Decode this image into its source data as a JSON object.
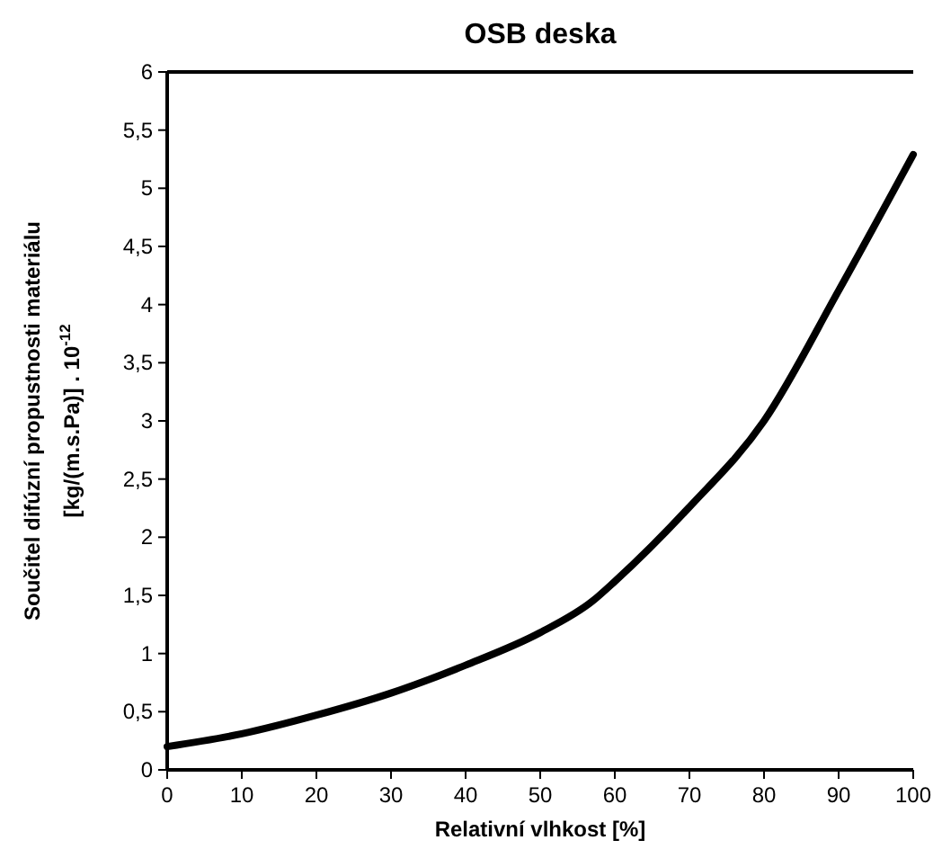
{
  "chart_data": {
    "type": "line",
    "title": "OSB deska",
    "xlabel": "Relativní vlhkost [%]",
    "ylabel": "Součitel difúzní propustnosti materiálu\n[kg/(m.s.Pa)] . 10$^{-12}$",
    "x": [
      0,
      10,
      20,
      30,
      40,
      50,
      57,
      60,
      70,
      80,
      90,
      100
    ],
    "series": [
      {
        "color": "#000000",
        "values": [
          0.2,
          0.31,
          0.47,
          0.66,
          0.9,
          1.18,
          1.45,
          1.62,
          2.26,
          3.0,
          4.12,
          5.29
        ]
      }
    ],
    "xlim": [
      0,
      100
    ],
    "xticks": [
      0,
      10,
      20,
      30,
      40,
      50,
      60,
      70,
      80,
      90,
      100
    ],
    "ylim": [
      0,
      6
    ],
    "yticks": [
      0,
      {
        "value": 0.5,
        "label": "0,5"
      },
      1,
      {
        "value": 1.5,
        "label": "1,5"
      },
      2,
      {
        "value": 2.5,
        "label": "2,5"
      },
      3,
      {
        "value": 3.5,
        "label": "3,5"
      },
      4,
      {
        "value": 4.5,
        "label": "4,5"
      },
      5,
      {
        "value": 5.5,
        "label": "5,5"
      },
      6
    ],
    "marker": "none",
    "line_style": "solid"
  }
}
